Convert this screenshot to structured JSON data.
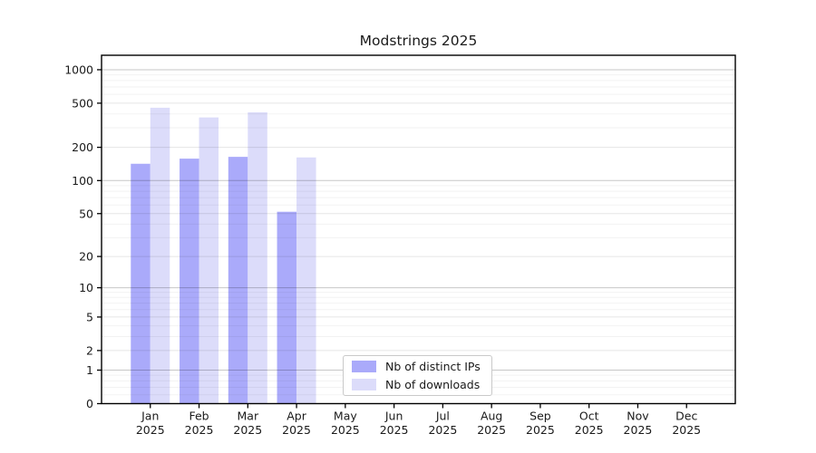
{
  "chart_data": {
    "type": "bar",
    "title": "Modstrings 2025",
    "y_scale": "log10(value+1)",
    "ylim": [
      0,
      1350
    ],
    "y_ticks": [
      0,
      1,
      2,
      5,
      10,
      20,
      50,
      100,
      200,
      500,
      1000
    ],
    "gridlines": {
      "power_of_ten": [
        1,
        10,
        100,
        1000
      ],
      "labeled_minor": [
        2,
        5,
        20,
        50,
        200,
        500
      ],
      "minor": [
        0.2,
        0.4,
        0.6,
        0.8,
        3,
        4,
        6,
        7,
        8,
        9,
        30,
        40,
        60,
        70,
        80,
        90,
        300,
        400,
        600,
        700,
        800,
        900
      ]
    },
    "categories": [
      {
        "month": "Jan",
        "year": "2025"
      },
      {
        "month": "Feb",
        "year": "2025"
      },
      {
        "month": "Mar",
        "year": "2025"
      },
      {
        "month": "Apr",
        "year": "2025"
      },
      {
        "month": "May",
        "year": "2025"
      },
      {
        "month": "Jun",
        "year": "2025"
      },
      {
        "month": "Jul",
        "year": "2025"
      },
      {
        "month": "Aug",
        "year": "2025"
      },
      {
        "month": "Sep",
        "year": "2025"
      },
      {
        "month": "Oct",
        "year": "2025"
      },
      {
        "month": "Nov",
        "year": "2025"
      },
      {
        "month": "Dec",
        "year": "2025"
      }
    ],
    "series": [
      {
        "name": "Nb of distinct IPs",
        "color": "#aaaafa",
        "values": [
          142,
          158,
          164,
          52,
          null,
          null,
          null,
          null,
          null,
          null,
          null,
          null
        ]
      },
      {
        "name": "Nb of downloads",
        "color": "#dcdcfa",
        "values": [
          455,
          372,
          414,
          162,
          null,
          null,
          null,
          null,
          null,
          null,
          null,
          null
        ]
      }
    ],
    "legend_position": "lower-center"
  },
  "colors": {
    "grid_power_of_ten": "rgba(0,0,0,0.22)",
    "grid_labeled_minor": "rgba(0,0,0,0.10)",
    "grid_minor": "rgba(0,0,0,0.05)",
    "axis": "#000000",
    "tick_label": "#1a1a1a"
  }
}
